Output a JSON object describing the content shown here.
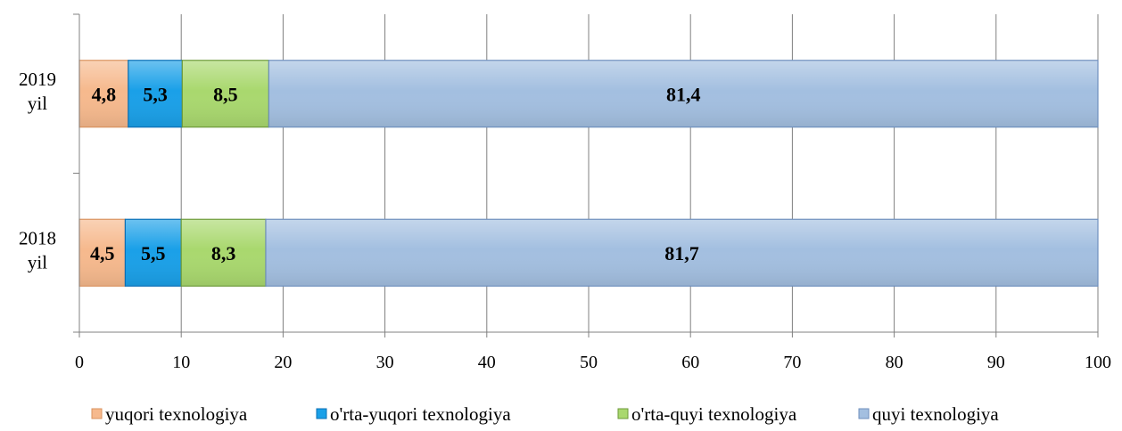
{
  "chart_data": {
    "type": "bar",
    "orientation": "horizontal",
    "stacked": true,
    "categories": [
      "2019 yil",
      "2018 yil"
    ],
    "category_lines": [
      [
        "2019",
        "yil"
      ],
      [
        "2018",
        "yil"
      ]
    ],
    "series": [
      {
        "name": "yuqori texnologiya",
        "values": [
          4.8,
          4.5
        ],
        "labels": [
          "4,8",
          "4,5"
        ],
        "color": "#f6b98d",
        "edge": "#d9935f"
      },
      {
        "name": "o'rta-yuqori texnologiya",
        "values": [
          5.3,
          5.5
        ],
        "labels": [
          "5,3",
          "5,5"
        ],
        "color": "#1aa0e8",
        "edge": "#0b6fb5"
      },
      {
        "name": "o'rta-quyi texnologiya",
        "values": [
          8.5,
          8.3
        ],
        "labels": [
          "8,5",
          "8,3"
        ],
        "color": "#a9d86e",
        "edge": "#6d9a3a"
      },
      {
        "name": "quyi texnologiya",
        "values": [
          81.4,
          81.7
        ],
        "labels": [
          "81,4",
          "81,7"
        ],
        "color": "#a3bfe0",
        "edge": "#6f8fbd"
      }
    ],
    "xlim": [
      0,
      100
    ],
    "xticks": [
      0,
      10,
      20,
      30,
      40,
      50,
      60,
      70,
      80,
      90,
      100
    ],
    "xticklabels": [
      "0",
      "10",
      "20",
      "30",
      "40",
      "50",
      "60",
      "70",
      "80",
      "90",
      "100"
    ],
    "grid": true,
    "legend_position": "bottom",
    "title": "",
    "xlabel": "",
    "ylabel": ""
  }
}
